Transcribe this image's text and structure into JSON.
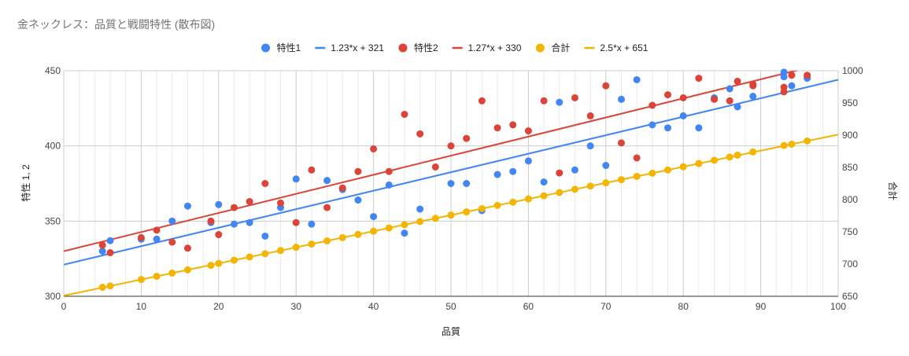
{
  "chart_data": {
    "type": "scatter",
    "title": "金ネックレス：品質と戦闘特性 (散布図)",
    "xlabel": "品質",
    "ylabel_left": "特性 1, 2",
    "ylabel_right": "合計",
    "xlim": [
      0,
      100
    ],
    "ylim_left": [
      300,
      450
    ],
    "ylim_right": [
      650,
      1000
    ],
    "x_ticks": [
      "0",
      "10",
      "20",
      "30",
      "40",
      "50",
      "60",
      "70",
      "80",
      "90",
      "100"
    ],
    "y_left_ticks": [
      "300",
      "350",
      "400",
      "450"
    ],
    "y_right_ticks": [
      "650",
      "700",
      "750",
      "800",
      "850",
      "900",
      "950",
      "1000"
    ],
    "grid": true,
    "legend_position": "top",
    "series": [
      {
        "name": "特性1",
        "color": "#4285f4",
        "axis": "left",
        "points": [
          [
            5,
            330
          ],
          [
            6,
            337
          ],
          [
            10,
            338
          ],
          [
            12,
            338
          ],
          [
            14,
            350
          ],
          [
            16,
            360
          ],
          [
            19,
            349
          ],
          [
            20,
            361
          ],
          [
            22,
            348
          ],
          [
            24,
            349
          ],
          [
            26,
            340
          ],
          [
            28,
            359
          ],
          [
            30,
            378
          ],
          [
            32,
            348
          ],
          [
            34,
            377
          ],
          [
            36,
            371
          ],
          [
            38,
            364
          ],
          [
            40,
            353
          ],
          [
            42,
            374
          ],
          [
            44,
            342
          ],
          [
            46,
            358
          ],
          [
            50,
            375
          ],
          [
            52,
            375
          ],
          [
            54,
            357
          ],
          [
            56,
            381
          ],
          [
            58,
            383
          ],
          [
            60,
            390
          ],
          [
            62,
            376
          ],
          [
            64,
            429
          ],
          [
            66,
            384
          ],
          [
            68,
            400
          ],
          [
            70,
            387
          ],
          [
            72,
            431
          ],
          [
            74,
            444
          ],
          [
            76,
            414
          ],
          [
            78,
            412
          ],
          [
            80,
            420
          ],
          [
            82,
            412
          ],
          [
            84,
            432
          ],
          [
            86,
            438
          ],
          [
            87,
            426
          ],
          [
            89,
            433
          ],
          [
            93,
            449
          ],
          [
            93,
            446
          ],
          [
            94,
            440
          ],
          [
            96,
            445
          ]
        ]
      },
      {
        "name": "1.23*x + 321",
        "color": "#4285f4",
        "axis": "left",
        "trendline": {
          "slope": 1.23,
          "intercept": 321
        }
      },
      {
        "name": "特性2",
        "color": "#db4437",
        "axis": "left",
        "points": [
          [
            5,
            334
          ],
          [
            6,
            329
          ],
          [
            10,
            339
          ],
          [
            12,
            344
          ],
          [
            14,
            336
          ],
          [
            16,
            332
          ],
          [
            19,
            350
          ],
          [
            20,
            341
          ],
          [
            22,
            359
          ],
          [
            24,
            363
          ],
          [
            26,
            375
          ],
          [
            28,
            362
          ],
          [
            30,
            349
          ],
          [
            32,
            384
          ],
          [
            34,
            359
          ],
          [
            36,
            372
          ],
          [
            38,
            383
          ],
          [
            40,
            398
          ],
          [
            42,
            383
          ],
          [
            44,
            421
          ],
          [
            46,
            408
          ],
          [
            48,
            386
          ],
          [
            50,
            400
          ],
          [
            52,
            405
          ],
          [
            54,
            430
          ],
          [
            56,
            412
          ],
          [
            58,
            414
          ],
          [
            60,
            410
          ],
          [
            62,
            430
          ],
          [
            64,
            382
          ],
          [
            66,
            432
          ],
          [
            68,
            420
          ],
          [
            70,
            440
          ],
          [
            72,
            402
          ],
          [
            74,
            392
          ],
          [
            76,
            427
          ],
          [
            78,
            434
          ],
          [
            80,
            432
          ],
          [
            82,
            445
          ],
          [
            84,
            431
          ],
          [
            86,
            430
          ],
          [
            87,
            443
          ],
          [
            89,
            440
          ],
          [
            89,
            441
          ],
          [
            93,
            436
          ],
          [
            93,
            439
          ],
          [
            94,
            447
          ],
          [
            96,
            447
          ]
        ]
      },
      {
        "name": "1.27*x + 330",
        "color": "#db4437",
        "axis": "left",
        "trendline": {
          "slope": 1.27,
          "intercept": 330
        }
      },
      {
        "name": "合計",
        "color": "#f4b400",
        "axis": "right",
        "points": [
          [
            5,
            664
          ],
          [
            6,
            666
          ],
          [
            10,
            676
          ],
          [
            12,
            681
          ],
          [
            14,
            686
          ],
          [
            16,
            691
          ],
          [
            19,
            698
          ],
          [
            20,
            701
          ],
          [
            22,
            706
          ],
          [
            24,
            711
          ],
          [
            26,
            716
          ],
          [
            28,
            721
          ],
          [
            30,
            726
          ],
          [
            32,
            731
          ],
          [
            34,
            736
          ],
          [
            36,
            741
          ],
          [
            38,
            746
          ],
          [
            40,
            751
          ],
          [
            42,
            756
          ],
          [
            44,
            761
          ],
          [
            46,
            766
          ],
          [
            48,
            771
          ],
          [
            50,
            776
          ],
          [
            52,
            781
          ],
          [
            54,
            786
          ],
          [
            56,
            791
          ],
          [
            58,
            796
          ],
          [
            60,
            801
          ],
          [
            62,
            806
          ],
          [
            64,
            811
          ],
          [
            66,
            816
          ],
          [
            68,
            821
          ],
          [
            70,
            826
          ],
          [
            72,
            831
          ],
          [
            74,
            836
          ],
          [
            76,
            841
          ],
          [
            78,
            846
          ],
          [
            80,
            851
          ],
          [
            82,
            856
          ],
          [
            84,
            861
          ],
          [
            86,
            866
          ],
          [
            87,
            869
          ],
          [
            89,
            874
          ],
          [
            93,
            884
          ],
          [
            94,
            886
          ],
          [
            96,
            891
          ]
        ]
      },
      {
        "name": "2.5*x + 651",
        "color": "#f4b400",
        "axis": "right",
        "trendline": {
          "slope": 2.5,
          "intercept": 651
        }
      }
    ]
  }
}
